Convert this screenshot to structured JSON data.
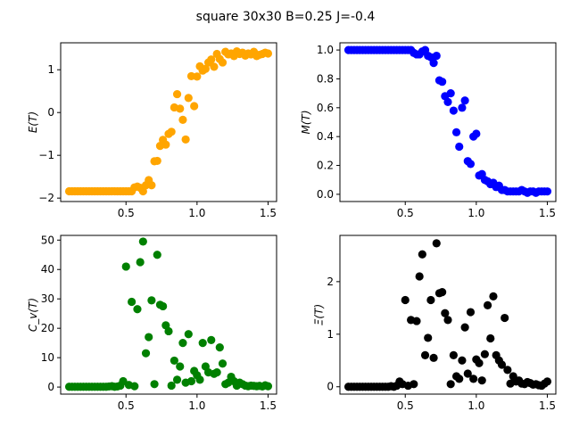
{
  "figure": {
    "title": "square 30x30  B=0.25 J=-0.4"
  },
  "chart_data": [
    {
      "type": "scatter",
      "id": "energy",
      "ylabel": "E(T)",
      "color": "#FFA500",
      "xlim": [
        0.04,
        1.56
      ],
      "ylim": [
        -2.08,
        1.63
      ],
      "xticks": [
        0.5,
        1.0,
        1.5
      ],
      "xtick_labels": [
        "0.5",
        "1.0",
        "1.5"
      ],
      "yticks": [
        -2,
        -1,
        0,
        1
      ],
      "ytick_labels": [
        "−2",
        "−1",
        "0",
        "1"
      ],
      "x": [
        0.1,
        0.12,
        0.14,
        0.16,
        0.18,
        0.2,
        0.22,
        0.24,
        0.26,
        0.28,
        0.3,
        0.32,
        0.34,
        0.36,
        0.38,
        0.4,
        0.42,
        0.44,
        0.46,
        0.48,
        0.5,
        0.52,
        0.54,
        0.56,
        0.58,
        0.6,
        0.62,
        0.64,
        0.66,
        0.68,
        0.7,
        0.72,
        0.74,
        0.76,
        0.78,
        0.8,
        0.82,
        0.84,
        0.86,
        0.88,
        0.9,
        0.92,
        0.94,
        0.96,
        0.98,
        1.0,
        1.02,
        1.04,
        1.06,
        1.08,
        1.1,
        1.12,
        1.14,
        1.16,
        1.18,
        1.2,
        1.22,
        1.24,
        1.26,
        1.28,
        1.3,
        1.32,
        1.34,
        1.36,
        1.38,
        1.4,
        1.42,
        1.44,
        1.46,
        1.48,
        1.5
      ],
      "y": [
        -1.84,
        -1.84,
        -1.84,
        -1.84,
        -1.84,
        -1.84,
        -1.84,
        -1.84,
        -1.84,
        -1.84,
        -1.84,
        -1.84,
        -1.84,
        -1.84,
        -1.84,
        -1.84,
        -1.84,
        -1.84,
        -1.84,
        -1.84,
        -1.84,
        -1.84,
        -1.84,
        -1.75,
        -1.73,
        -1.76,
        -1.84,
        -1.7,
        -1.58,
        -1.7,
        -1.14,
        -1.13,
        -0.78,
        -0.64,
        -0.75,
        -0.5,
        -0.45,
        0.12,
        0.43,
        0.09,
        -0.17,
        -0.63,
        0.34,
        0.85,
        0.15,
        0.84,
        1.08,
        0.98,
        1.02,
        1.17,
        1.24,
        1.07,
        1.37,
        1.25,
        1.17,
        1.42,
        1.36,
        1.38,
        1.32,
        1.43,
        1.37,
        1.4,
        1.33,
        1.38,
        1.36,
        1.42,
        1.32,
        1.35,
        1.37,
        1.4,
        1.38
      ]
    },
    {
      "type": "scatter",
      "id": "magnetization",
      "ylabel": "M(T)",
      "color": "#0000FF",
      "xlim": [
        0.04,
        1.56
      ],
      "ylim": [
        -0.05,
        1.05
      ],
      "xticks": [
        0.5,
        1.0,
        1.5
      ],
      "xtick_labels": [
        "0.5",
        "1.0",
        "1.5"
      ],
      "yticks": [
        0.0,
        0.2,
        0.4,
        0.6,
        0.8,
        1.0
      ],
      "ytick_labels": [
        "0.0",
        "0.2",
        "0.4",
        "0.6",
        "0.8",
        "1.0"
      ],
      "x": [
        0.1,
        0.12,
        0.14,
        0.16,
        0.18,
        0.2,
        0.22,
        0.24,
        0.26,
        0.28,
        0.3,
        0.32,
        0.34,
        0.36,
        0.38,
        0.4,
        0.42,
        0.44,
        0.46,
        0.48,
        0.5,
        0.52,
        0.54,
        0.56,
        0.58,
        0.6,
        0.62,
        0.64,
        0.66,
        0.68,
        0.7,
        0.72,
        0.74,
        0.76,
        0.78,
        0.8,
        0.82,
        0.84,
        0.86,
        0.88,
        0.9,
        0.92,
        0.94,
        0.96,
        0.98,
        1.0,
        1.02,
        1.04,
        1.06,
        1.08,
        1.1,
        1.12,
        1.14,
        1.16,
        1.18,
        1.2,
        1.22,
        1.24,
        1.26,
        1.28,
        1.3,
        1.32,
        1.34,
        1.36,
        1.38,
        1.4,
        1.42,
        1.44,
        1.46,
        1.48,
        1.5
      ],
      "y": [
        1.0,
        1.0,
        1.0,
        1.0,
        1.0,
        1.0,
        1.0,
        1.0,
        1.0,
        1.0,
        1.0,
        1.0,
        1.0,
        1.0,
        1.0,
        1.0,
        1.0,
        1.0,
        1.0,
        1.0,
        1.0,
        1.0,
        1.0,
        0.98,
        0.97,
        0.97,
        0.99,
        1.0,
        0.96,
        0.95,
        0.91,
        0.96,
        0.79,
        0.78,
        0.68,
        0.64,
        0.7,
        0.58,
        0.43,
        0.33,
        0.6,
        0.65,
        0.23,
        0.21,
        0.4,
        0.42,
        0.13,
        0.14,
        0.1,
        0.09,
        0.07,
        0.08,
        0.05,
        0.06,
        0.03,
        0.03,
        0.02,
        0.02,
        0.02,
        0.02,
        0.02,
        0.03,
        0.02,
        0.01,
        0.02,
        0.02,
        0.01,
        0.02,
        0.02,
        0.02,
        0.02
      ]
    },
    {
      "type": "scatter",
      "id": "specific-heat",
      "ylabel": "C_v(T)",
      "color": "#008000",
      "xlim": [
        0.04,
        1.56
      ],
      "ylim": [
        -2.4,
        51.6
      ],
      "xticks": [
        0.5,
        1.0,
        1.5
      ],
      "xtick_labels": [
        "0.5",
        "1.0",
        "1.5"
      ],
      "yticks": [
        0,
        10,
        20,
        30,
        40,
        50
      ],
      "ytick_labels": [
        "0",
        "10",
        "20",
        "30",
        "40",
        "50"
      ],
      "x": [
        0.1,
        0.12,
        0.14,
        0.16,
        0.18,
        0.2,
        0.22,
        0.24,
        0.26,
        0.28,
        0.3,
        0.32,
        0.34,
        0.36,
        0.38,
        0.4,
        0.42,
        0.44,
        0.46,
        0.48,
        0.5,
        0.52,
        0.54,
        0.56,
        0.58,
        0.6,
        0.62,
        0.64,
        0.66,
        0.68,
        0.7,
        0.72,
        0.74,
        0.76,
        0.78,
        0.8,
        0.82,
        0.84,
        0.86,
        0.88,
        0.9,
        0.92,
        0.94,
        0.96,
        0.98,
        1.0,
        1.02,
        1.04,
        1.06,
        1.08,
        1.1,
        1.12,
        1.14,
        1.16,
        1.18,
        1.2,
        1.22,
        1.24,
        1.26,
        1.28,
        1.3,
        1.32,
        1.34,
        1.36,
        1.38,
        1.4,
        1.42,
        1.44,
        1.46,
        1.48,
        1.5
      ],
      "y": [
        0.1,
        0.1,
        0.1,
        0.1,
        0.1,
        0.1,
        0.1,
        0.1,
        0.1,
        0.1,
        0.1,
        0.1,
        0.1,
        0.1,
        0.2,
        0.3,
        0.1,
        0.2,
        0.5,
        2.0,
        41.0,
        0.7,
        29.0,
        0.3,
        26.5,
        42.5,
        49.5,
        11.5,
        17.0,
        29.5,
        1.0,
        45.0,
        28.0,
        27.5,
        21.0,
        19.0,
        0.5,
        9.0,
        2.5,
        7.0,
        15.0,
        1.5,
        18.0,
        2.0,
        5.5,
        4.0,
        2.5,
        15.0,
        7.0,
        5.0,
        16.0,
        4.5,
        5.0,
        13.5,
        8.0,
        1.0,
        1.5,
        3.5,
        2.0,
        0.5,
        1.5,
        1.0,
        0.5,
        0.3,
        0.5,
        0.4,
        0.3,
        0.4,
        0.2,
        0.6,
        0.3
      ]
    },
    {
      "type": "scatter",
      "id": "susceptibility",
      "ylabel": "Ξ(T)",
      "color": "#000000",
      "xlim": [
        0.04,
        1.56
      ],
      "ylim": [
        -0.14,
        2.88
      ],
      "xticks": [
        0.5,
        1.0,
        1.5
      ],
      "xtick_labels": [
        "0.5",
        "1.0",
        "1.5"
      ],
      "yticks": [
        0,
        1,
        2
      ],
      "ytick_labels": [
        "0",
        "1",
        "2"
      ],
      "x": [
        0.1,
        0.12,
        0.14,
        0.16,
        0.18,
        0.2,
        0.22,
        0.24,
        0.26,
        0.28,
        0.3,
        0.32,
        0.34,
        0.36,
        0.38,
        0.4,
        0.42,
        0.44,
        0.46,
        0.48,
        0.5,
        0.52,
        0.54,
        0.56,
        0.58,
        0.6,
        0.62,
        0.64,
        0.66,
        0.68,
        0.7,
        0.72,
        0.74,
        0.76,
        0.78,
        0.8,
        0.82,
        0.84,
        0.86,
        0.88,
        0.9,
        0.92,
        0.94,
        0.96,
        0.98,
        1.0,
        1.02,
        1.04,
        1.06,
        1.08,
        1.1,
        1.12,
        1.14,
        1.16,
        1.18,
        1.2,
        1.22,
        1.24,
        1.26,
        1.28,
        1.3,
        1.32,
        1.34,
        1.36,
        1.38,
        1.4,
        1.42,
        1.44,
        1.46,
        1.48,
        1.5
      ],
      "y": [
        0.0,
        0.0,
        0.0,
        0.0,
        0.0,
        0.0,
        0.0,
        0.0,
        0.0,
        0.0,
        0.0,
        0.0,
        0.0,
        0.0,
        0.0,
        0.01,
        0.0,
        0.02,
        0.1,
        0.05,
        1.65,
        0.02,
        1.27,
        0.05,
        1.25,
        2.1,
        2.52,
        0.6,
        0.93,
        1.65,
        0.55,
        2.73,
        1.78,
        1.8,
        1.4,
        1.27,
        0.05,
        0.6,
        0.2,
        0.15,
        0.5,
        1.13,
        0.25,
        1.42,
        0.15,
        0.52,
        0.45,
        0.12,
        0.62,
        1.55,
        0.92,
        1.72,
        0.6,
        0.5,
        0.42,
        1.31,
        0.32,
        0.06,
        0.2,
        0.1,
        0.12,
        0.06,
        0.05,
        0.09,
        0.07,
        0.04,
        0.05,
        0.03,
        0.02,
        0.06,
        0.1
      ]
    }
  ]
}
